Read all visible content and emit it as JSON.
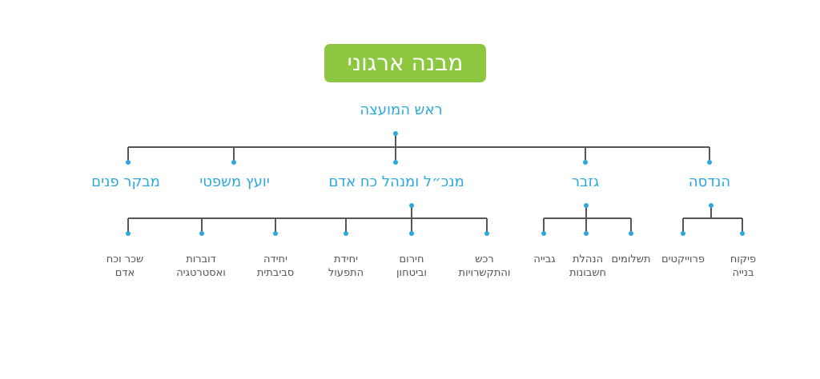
{
  "title": "מבנה ארגוני",
  "root": "ראש המועצה",
  "departments": [
    {
      "label": "הנדסה",
      "children": [
        "פיקוח בנייה",
        "פרוייקטים"
      ]
    },
    {
      "label": "גזבר",
      "children": [
        "תשלומים",
        "הנהלת חשבונות",
        "גבייה"
      ]
    },
    {
      "label": "מנכ״ל ומנהל כח אדם",
      "children": [
        "רכש והתקשרויות",
        "חירום וביטחון",
        "יחידת התפעול",
        "יחידה סביבתית",
        "דוברות ואסטרטגיה",
        "שכר וכח אדם"
      ]
    },
    {
      "label": "יועץ משפטי",
      "children": []
    },
    {
      "label": "מבקר פנים",
      "children": []
    }
  ],
  "colors": {
    "title_bg": "#8dc63f",
    "accent": "#29a8e0",
    "line": "#555555",
    "leaf_text": "#555555"
  }
}
